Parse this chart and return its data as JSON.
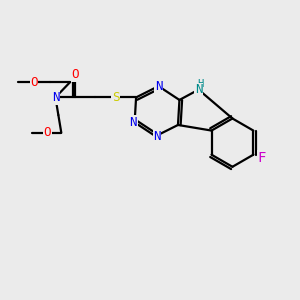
{
  "bg_color": "#ebebeb",
  "atom_colors": {
    "N": "#0000ee",
    "NH": "#008b8b",
    "O": "#ff0000",
    "S": "#cccc00",
    "F": "#cc00cc",
    "C": "#000000"
  },
  "lw": 1.6,
  "fs": 9.0
}
